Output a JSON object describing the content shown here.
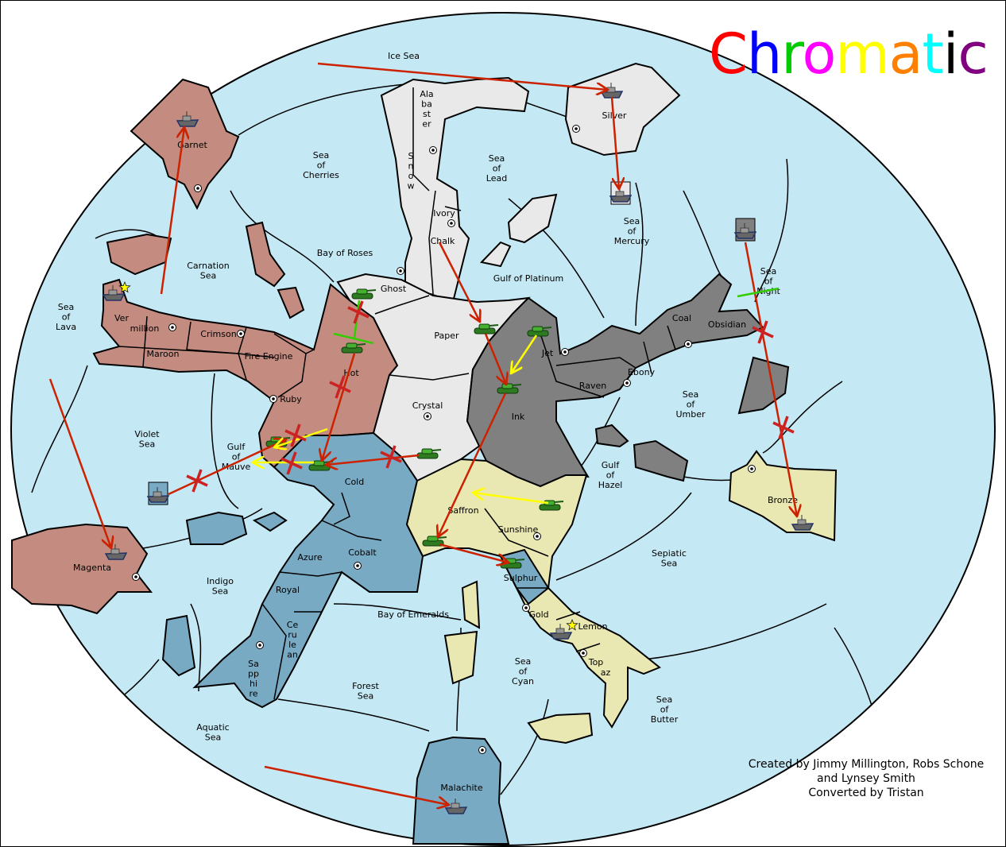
{
  "title": {
    "letters": [
      {
        "ch": "C",
        "color": "#FF0000"
      },
      {
        "ch": "h",
        "color": "#0000FF"
      },
      {
        "ch": "r",
        "color": "#00CC00"
      },
      {
        "ch": "o",
        "color": "#FF00FF"
      },
      {
        "ch": "m",
        "color": "#FFFF00"
      },
      {
        "ch": "a",
        "color": "#FF8000"
      },
      {
        "ch": "t",
        "color": "#00FFFF"
      },
      {
        "ch": "i",
        "color": "#000000"
      },
      {
        "ch": "c",
        "color": "#800080"
      }
    ]
  },
  "credits": [
    "Created by Jimmy Millington, Robs Schone",
    "and Lynsey Smith",
    "Converted by Tristan"
  ],
  "colors": {
    "sea": "#C5E9F4",
    "red_power": "#C48C80",
    "gray_power": "#808080",
    "white_power": "#E9E9E9",
    "blue_power": "#78AAC4",
    "yellow_power": "#EAE8B2",
    "move_order": "#CC2200",
    "support_order": "#FFFF00",
    "hold_support": "#33CC00"
  },
  "labels": [
    [
      "Ice Sea"
    ],
    [
      "Ala",
      "ba",
      "st",
      "er"
    ],
    [
      "Silver"
    ],
    [
      "Sea",
      "of",
      "Cherries"
    ],
    [
      "Garnet"
    ],
    [
      "S",
      "n",
      "o",
      "w"
    ],
    [
      "Sea",
      "of",
      "Lead"
    ],
    [
      "Ivory"
    ],
    [
      "Sea",
      "of",
      "Mercury"
    ],
    [
      "Chalk"
    ],
    [
      "Bay of Roses"
    ],
    [
      "Carnation",
      "Sea"
    ],
    [
      "Gulf of Platinum"
    ],
    [
      "Sea",
      "of",
      "Night"
    ],
    [
      "Ghost"
    ],
    [
      "Sea",
      "of",
      "Lava"
    ],
    [
      "Ver"
    ],
    [
      "million"
    ],
    [
      "Crimson"
    ],
    [
      "Paper"
    ],
    [
      "Coal"
    ],
    [
      "Obsidian"
    ],
    [
      "Maroon"
    ],
    [
      "Fire Engine"
    ],
    [
      "Jet"
    ],
    [
      "Hot"
    ],
    [
      "Ebony"
    ],
    [
      "Raven"
    ],
    [
      "Ruby"
    ],
    [
      "Sea",
      "of",
      "Umber"
    ],
    [
      "Crystal"
    ],
    [
      "Ink"
    ],
    [
      "Violet",
      "Sea"
    ],
    [
      "Gulf",
      "of",
      "Mauve"
    ],
    [
      "Gulf",
      "of",
      "Hazel"
    ],
    [
      "Cold"
    ],
    [
      "Bronze"
    ],
    [
      "Saffron"
    ],
    [
      "Sunshine"
    ],
    [
      "Sepiatic",
      "Sea"
    ],
    [
      "Cobalt"
    ],
    [
      "Azure"
    ],
    [
      "Magenta"
    ],
    [
      "Sulphur"
    ],
    [
      "Indigo",
      "Sea"
    ],
    [
      "Royal"
    ],
    [
      "Bay of Emeralds"
    ],
    [
      "Gold"
    ],
    [
      "Lemon"
    ],
    [
      "Ce",
      "ru",
      "le",
      "an"
    ],
    [
      "Sea",
      "of",
      "Cyan"
    ],
    [
      "Top"
    ],
    [
      "az"
    ],
    [
      "Sa",
      "pp",
      "hi",
      "re"
    ],
    [
      "Forest",
      "Sea"
    ],
    [
      "Sea",
      "of",
      "Butter"
    ],
    [
      "Aquatic",
      "Sea"
    ],
    [
      "Malachite"
    ]
  ],
  "units": {
    "fleets": [
      "Silver",
      "Garnet",
      "Vermillion",
      "Sea of Mercury",
      "Sea of Night",
      "Violet Sea",
      "Magenta",
      "Bronze",
      "Lemon",
      "Malachite"
    ],
    "armies": [
      "Ghost",
      "Hot",
      "Gulf of Mauve",
      "Cold",
      "Crystal",
      "Paper",
      "Jet",
      "Ink",
      "Saffron (east)",
      "Saffron",
      "Sulphur"
    ]
  }
}
